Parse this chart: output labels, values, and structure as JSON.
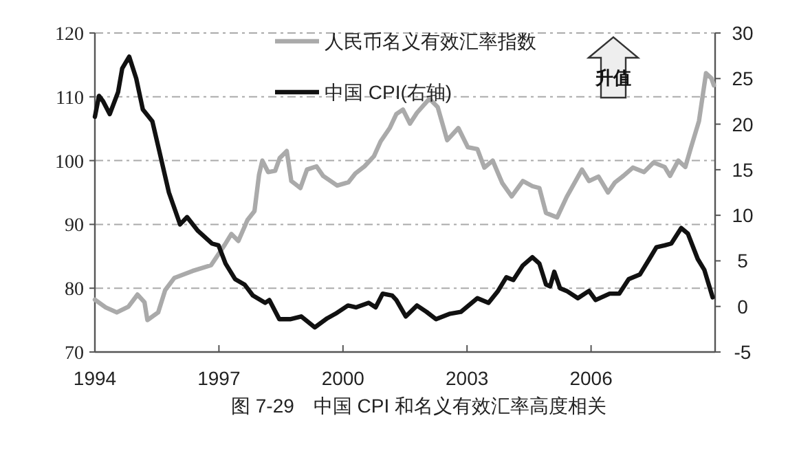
{
  "chart_data": {
    "type": "line",
    "title": "图 7-29　中国 CPI 和名义有效汇率高度相关",
    "xlim": [
      1994,
      2009
    ],
    "xticks": [
      1994,
      1997,
      2000,
      2003,
      2006
    ],
    "ylim": [
      70,
      120
    ],
    "yticks": [
      70,
      80,
      90,
      100,
      110,
      120
    ],
    "y2lim": [
      -5,
      30
    ],
    "y2ticks": [
      -5,
      0,
      5,
      10,
      15,
      20,
      25,
      30
    ],
    "grid": "y",
    "legend": "top",
    "annotations": [
      "升值"
    ],
    "series": [
      {
        "name": "人民币名义有效汇率指数",
        "color": "#aaaaaa",
        "x": [
          1994.0,
          1994.26,
          1994.53,
          1994.81,
          1995.03,
          1995.2,
          1995.27,
          1995.53,
          1995.7,
          1995.92,
          1996.36,
          1996.81,
          1997.14,
          1997.3,
          1997.47,
          1997.69,
          1997.86,
          1997.97,
          1998.05,
          1998.19,
          1998.36,
          1998.47,
          1998.64,
          1998.75,
          1998.97,
          1999.13,
          1999.36,
          1999.52,
          1999.86,
          2000.13,
          2000.3,
          2000.52,
          2000.75,
          2000.91,
          2001.13,
          2001.29,
          2001.45,
          2001.62,
          2001.79,
          2002.09,
          2002.29,
          2002.52,
          2002.79,
          2003.02,
          2003.25,
          2003.42,
          2003.62,
          2003.85,
          2004.08,
          2004.35,
          2004.58,
          2004.75,
          2004.91,
          2005.18,
          2005.41,
          2005.78,
          2005.95,
          2006.18,
          2006.41,
          2006.58,
          2006.78,
          2007.01,
          2007.28,
          2007.51,
          2007.78,
          2007.91,
          2008.11,
          2008.28,
          2008.41,
          2008.61,
          2008.78,
          2008.91,
          2008.97
        ],
        "values": [
          78.2,
          77,
          76.2,
          77.1,
          79,
          77.8,
          75,
          76.2,
          79.7,
          81.6,
          82.7,
          83.6,
          86.8,
          88.5,
          87.4,
          90.7,
          92.1,
          97.8,
          100,
          98.2,
          98.4,
          100.4,
          101.5,
          96.8,
          95.7,
          98.6,
          99.1,
          97.6,
          96.1,
          96.6,
          98,
          99.1,
          100.7,
          103,
          105.1,
          107.3,
          108,
          105.8,
          107.5,
          109.7,
          108.4,
          103.2,
          105.1,
          102.1,
          101.8,
          98.9,
          100,
          96.5,
          94.4,
          96.8,
          96,
          95.7,
          91.8,
          91.1,
          94.3,
          98.6,
          96.8,
          97.5,
          95,
          96.6,
          97.6,
          98.9,
          98.2,
          99.7,
          99,
          97.6,
          100,
          99,
          101.9,
          106.2,
          113.7,
          112.9,
          111.8
        ]
      },
      {
        "name": "中国 CPI(右轴)",
        "color": "#111111",
        "axis": "y2",
        "x": [
          1994.0,
          1994.1,
          1994.2,
          1994.36,
          1994.56,
          1994.66,
          1994.83,
          1995.0,
          1995.16,
          1995.39,
          1995.56,
          1995.79,
          1996.06,
          1996.23,
          1996.49,
          1996.83,
          1996.99,
          1997.16,
          1997.39,
          1997.62,
          1997.82,
          1998.12,
          1998.22,
          1998.46,
          1998.72,
          1998.99,
          1999.32,
          1999.62,
          1999.82,
          2000.12,
          2000.32,
          2000.62,
          2000.79,
          2000.96,
          2001.19,
          2001.29,
          2001.52,
          2001.79,
          2002.02,
          2002.25,
          2002.59,
          2002.85,
          2003.25,
          2003.52,
          2003.75,
          2003.95,
          2004.12,
          2004.35,
          2004.58,
          2004.75,
          2004.91,
          2005.01,
          2005.11,
          2005.25,
          2005.41,
          2005.68,
          2005.95,
          2006.11,
          2006.45,
          2006.68,
          2006.91,
          2007.18,
          2007.41,
          2007.58,
          2007.78,
          2007.94,
          2008.18,
          2008.34,
          2008.58,
          2008.74,
          2008.94
        ],
        "values": [
          20.8,
          23.1,
          22.5,
          21.1,
          23.5,
          26.1,
          27.4,
          25,
          21.6,
          20.3,
          17,
          12.5,
          9,
          9.8,
          8.3,
          6.9,
          6.7,
          4.7,
          3,
          2.4,
          1.2,
          0.4,
          0.7,
          -1.4,
          -1.4,
          -1.1,
          -2.3,
          -1.3,
          -0.8,
          0.1,
          -0.1,
          0.4,
          -0.1,
          1.4,
          1.2,
          0.7,
          -1.1,
          0.1,
          -0.6,
          -1.4,
          -0.8,
          -0.6,
          0.9,
          0.4,
          1.7,
          3.2,
          2.9,
          4.5,
          5.4,
          4.7,
          2.4,
          2.2,
          3.8,
          2.0,
          1.7,
          0.9,
          1.7,
          0.7,
          1.4,
          1.4,
          3,
          3.5,
          5.2,
          6.5,
          6.7,
          6.9,
          8.6,
          8,
          5.2,
          4,
          1
        ]
      }
    ]
  }
}
